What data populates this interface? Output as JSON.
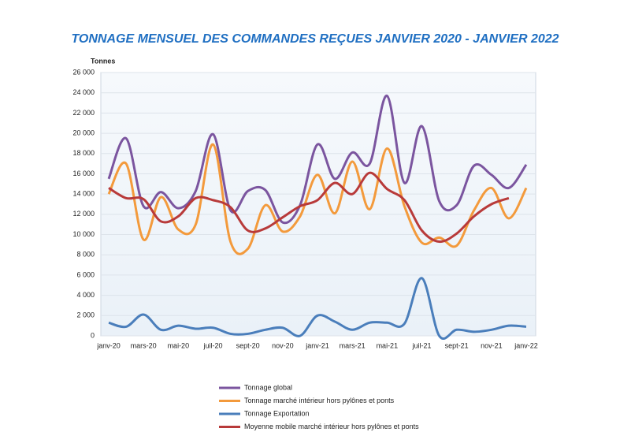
{
  "chart_data": {
    "type": "line",
    "title": "TONNAGE MENSUEL DES COMMANDES REÇUES JANVIER 2020 - JANVIER 2022",
    "y_label": "Tonnes",
    "categories": [
      "janv-20",
      null,
      "mars-20",
      null,
      "mai-20",
      null,
      "juil-20",
      null,
      "sept-20",
      null,
      "nov-20",
      null,
      "janv-21",
      null,
      "mars-21",
      null,
      "mai-21",
      null,
      "juil-21",
      null,
      "sept-21",
      null,
      "nov-21",
      null,
      "janv-22"
    ],
    "series": [
      {
        "name": "Tonnage global",
        "color": "#7b559f",
        "values": [
          15500,
          19500,
          12800,
          14200,
          12600,
          14300,
          19900,
          12400,
          14300,
          14400,
          11200,
          12900,
          18900,
          15500,
          18100,
          17000,
          23700,
          15100,
          20700,
          13300,
          12900,
          16800,
          15900,
          14600,
          16900
        ]
      },
      {
        "name": "Tonnage marché intérieur hors pylônes et ponts",
        "color": "#f39a3c",
        "values": [
          14000,
          17000,
          9500,
          13700,
          10500,
          11000,
          18900,
          9300,
          8600,
          12900,
          10300,
          11800,
          15900,
          12100,
          17200,
          12500,
          18500,
          12800,
          9200,
          9700,
          8900,
          12400,
          14600,
          11600,
          14600
        ]
      },
      {
        "name": "Tonnage Exportation",
        "color": "#4a7ebb",
        "values": [
          1300,
          900,
          2100,
          600,
          1000,
          700,
          800,
          200,
          200,
          600,
          800,
          0,
          2000,
          1400,
          600,
          1300,
          1300,
          1200,
          5700,
          0,
          600,
          400,
          600,
          1000,
          900
        ]
      },
      {
        "name": "Moyenne mobile marché intérieur hors pylônes et ponts",
        "color": "#b83a3a",
        "values": [
          14600,
          13600,
          13500,
          11300,
          11800,
          13600,
          13400,
          12700,
          10400,
          10600,
          11700,
          12800,
          13400,
          15100,
          14000,
          16100,
          14500,
          13400,
          10400,
          9300,
          10100,
          11800,
          13000,
          13600,
          null
        ]
      }
    ],
    "ylim": [
      0,
      26000
    ],
    "yticks": [
      0,
      {
        "value": 2000,
        "label": "2 000"
      },
      {
        "value": 4000,
        "label": "4 000"
      },
      {
        "value": 6000,
        "label": "6 000"
      },
      {
        "value": 8000,
        "label": "8 000"
      },
      {
        "value": 10000,
        "label": "10 000"
      },
      {
        "value": 12000,
        "label": "12 000"
      },
      {
        "value": 14000,
        "label": "14 000"
      },
      {
        "value": 16000,
        "label": "16 000"
      },
      {
        "value": 18000,
        "label": "18 000"
      },
      {
        "value": 20000,
        "label": "20 000"
      },
      {
        "value": 22000,
        "label": "22 000"
      },
      {
        "value": 24000,
        "label": "24 000"
      },
      {
        "value": 26000,
        "label": "26 000"
      }
    ],
    "grid": true
  }
}
